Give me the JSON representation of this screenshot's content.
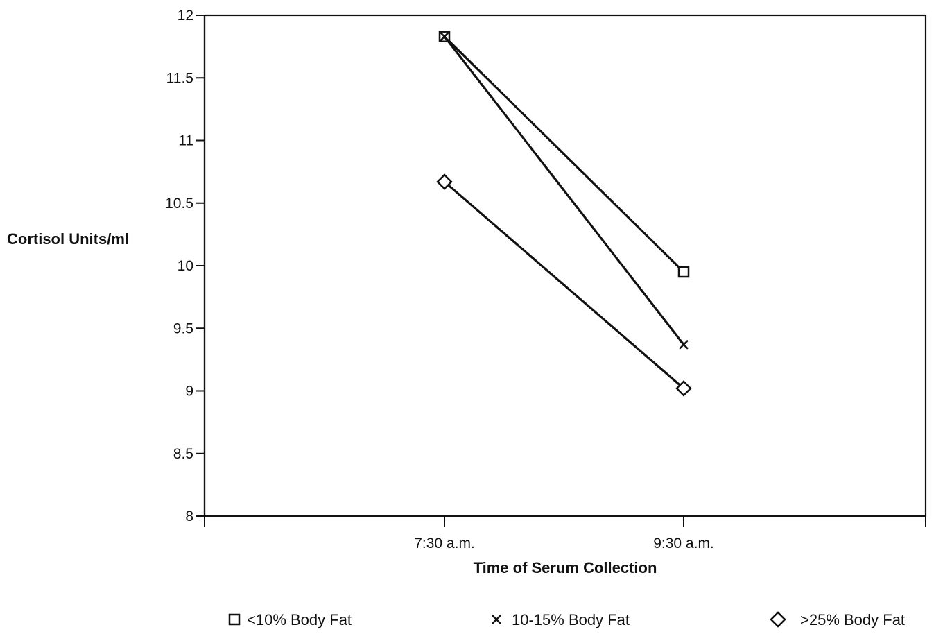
{
  "chart_data": {
    "type": "line",
    "title": "",
    "xlabel": "Time of Serum Collection",
    "ylabel": "Cortisol Units/ml",
    "categories": [
      "7:30 a.m.",
      "9:30 a.m."
    ],
    "ylim": [
      8,
      12
    ],
    "yticks": [
      8,
      8.5,
      9,
      9.5,
      10,
      10.5,
      11,
      11.5,
      12
    ],
    "ytick_labels": [
      "8",
      "8.5",
      "9",
      "9.5",
      "10",
      "10.5",
      "11",
      "11.5",
      "12"
    ],
    "grid": false,
    "legend_position": "bottom",
    "series": [
      {
        "name": "<10% Body Fat",
        "marker": "square",
        "values": [
          11.83,
          9.95
        ]
      },
      {
        "name": "10-15% Body Fat",
        "marker": "cross",
        "values": [
          11.83,
          9.37
        ]
      },
      {
        "name": ">25% Body Fat",
        "marker": "diamond",
        "values": [
          10.67,
          9.02
        ]
      }
    ]
  }
}
